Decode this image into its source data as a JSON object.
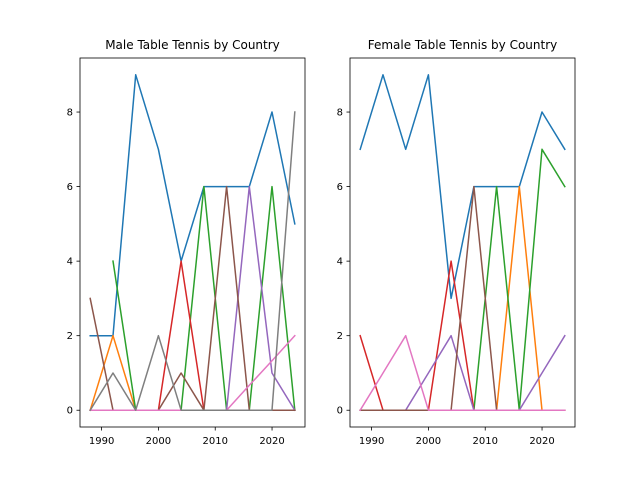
{
  "colors": [
    "#1f77b4",
    "#ff7f0e",
    "#2ca02c",
    "#d62728",
    "#9467bd",
    "#8c564b",
    "#e377c2",
    "#7f7f7f"
  ],
  "chart_data": [
    {
      "type": "line",
      "title": "Male Table Tennis by Country",
      "xlabel": "",
      "ylabel": "",
      "xlim": [
        1986.2,
        2025.8
      ],
      "ylim": [
        -0.45,
        9.45
      ],
      "xticks": [
        1990,
        2000,
        2010,
        2020
      ],
      "yticks": [
        0,
        2,
        4,
        6,
        8
      ],
      "grid": false,
      "series": [
        {
          "color": "#1f77b4",
          "x": [
            1988,
            1992,
            1996,
            2000,
            2004,
            2008,
            2012,
            2016,
            2020,
            2024
          ],
          "y": [
            2,
            2,
            9,
            7,
            4,
            6,
            6,
            6,
            8,
            5
          ]
        },
        {
          "color": "#ff7f0e",
          "x": [
            1988,
            1992,
            1996,
            2000,
            2004,
            2008,
            2012,
            2016,
            2020,
            2024
          ],
          "y": [
            0,
            2,
            0,
            0,
            0,
            0,
            0,
            0,
            0,
            0
          ]
        },
        {
          "color": "#2ca02c",
          "x": [
            1992,
            1996,
            2000,
            2004,
            2008,
            2012,
            2016,
            2020,
            2024
          ],
          "y": [
            4,
            0,
            0,
            0,
            6,
            0,
            0,
            6,
            0
          ]
        },
        {
          "color": "#d62728",
          "x": [
            1988,
            1992,
            1996,
            2000,
            2004,
            2008,
            2012,
            2016,
            2020,
            2024
          ],
          "y": [
            0,
            0,
            0,
            0,
            4,
            0,
            0,
            0,
            0,
            0
          ]
        },
        {
          "color": "#9467bd",
          "x": [
            1988,
            1992,
            1996,
            2000,
            2004,
            2008,
            2012,
            2016,
            2020,
            2024
          ],
          "y": [
            0,
            0,
            0,
            0,
            0,
            0,
            0,
            6,
            1,
            0
          ]
        },
        {
          "color": "#8c564b",
          "x": [
            1988,
            1992,
            1996,
            2000,
            2004,
            2008,
            2012,
            2016,
            2020,
            2024
          ],
          "y": [
            3,
            0,
            0,
            0,
            1,
            0,
            6,
            0,
            0,
            0
          ]
        },
        {
          "color": "#e377c2",
          "x": [
            1988,
            1992,
            1996,
            2000,
            2004,
            2008,
            2012,
            2016,
            2020,
            2024
          ],
          "y": [
            0,
            0,
            0,
            0,
            0,
            0,
            0,
            0.67,
            1.33,
            2
          ]
        },
        {
          "color": "#7f7f7f",
          "x": [
            1988,
            1992,
            1996,
            2000,
            2004,
            2008,
            2012,
            2016,
            2020,
            2024
          ],
          "y": [
            0,
            1,
            0,
            2,
            0,
            0,
            0,
            0,
            0,
            8
          ]
        }
      ]
    },
    {
      "type": "line",
      "title": "Female Table Tennis by Country",
      "xlabel": "",
      "ylabel": "",
      "xlim": [
        1986.2,
        2025.8
      ],
      "ylim": [
        -0.45,
        9.45
      ],
      "xticks": [
        1990,
        2000,
        2010,
        2020
      ],
      "yticks": [
        0,
        2,
        4,
        6,
        8
      ],
      "grid": false,
      "series": [
        {
          "color": "#1f77b4",
          "x": [
            1988,
            1992,
            1996,
            2000,
            2004,
            2008,
            2012,
            2016,
            2020,
            2024
          ],
          "y": [
            7,
            9,
            7,
            9,
            3,
            6,
            6,
            6,
            8,
            7
          ]
        },
        {
          "color": "#ff7f0e",
          "x": [
            1988,
            1992,
            1996,
            2000,
            2004,
            2008,
            2012,
            2016,
            2020,
            2024
          ],
          "y": [
            0,
            0,
            0,
            0,
            0,
            0,
            0,
            6,
            0,
            0
          ]
        },
        {
          "color": "#2ca02c",
          "x": [
            1988,
            1992,
            1996,
            2000,
            2004,
            2008,
            2012,
            2016,
            2020,
            2024
          ],
          "y": [
            0,
            0,
            0,
            0,
            0,
            0,
            6,
            0,
            7,
            6
          ]
        },
        {
          "color": "#d62728",
          "x": [
            1988,
            1992,
            1996,
            2000,
            2004,
            2008,
            2012,
            2016,
            2020,
            2024
          ],
          "y": [
            2,
            0,
            0,
            0,
            4,
            0,
            0,
            0,
            0,
            0
          ]
        },
        {
          "color": "#9467bd",
          "x": [
            1988,
            1992,
            1996,
            2000,
            2004,
            2008,
            2012,
            2016,
            2020,
            2024
          ],
          "y": [
            0,
            0,
            0,
            1,
            2,
            0,
            0,
            0,
            1,
            2
          ]
        },
        {
          "color": "#8c564b",
          "x": [
            1988,
            1992,
            1996,
            2000,
            2004,
            2008,
            2012,
            2016,
            2020,
            2024
          ],
          "y": [
            0,
            0,
            0,
            0,
            0,
            6,
            0,
            0,
            0,
            0
          ]
        },
        {
          "color": "#e377c2",
          "x": [
            1988,
            1992,
            1996,
            2000,
            2004,
            2008,
            2012,
            2016,
            2020,
            2024
          ],
          "y": [
            0,
            1,
            2,
            0,
            0,
            0,
            0,
            0,
            0,
            0
          ]
        }
      ]
    }
  ]
}
